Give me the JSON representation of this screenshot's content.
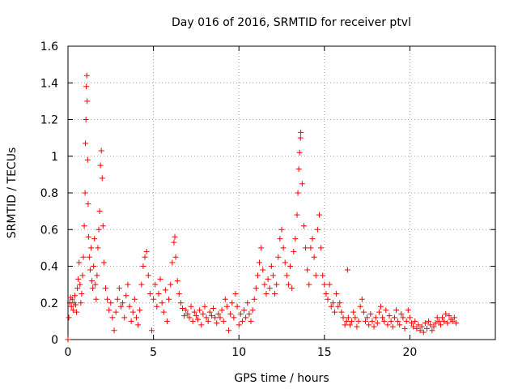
{
  "chart_data": {
    "type": "scatter",
    "title": "Day 016 of 2016, SRMTID for receiver ptvl",
    "xlabel": "GPS time / hours",
    "ylabel": "SRMTID / TECUs",
    "xlim": [
      0,
      25
    ],
    "ylim": [
      0,
      1.6
    ],
    "x_ticks": [
      0,
      5,
      10,
      15,
      20
    ],
    "x_tick_labels": [
      "0",
      "5",
      "10",
      "15",
      "20"
    ],
    "y_ticks": [
      0,
      0.2,
      0.4,
      0.6,
      0.8,
      1,
      1.2,
      1.4,
      1.6
    ],
    "y_tick_labels": [
      "0",
      "0.2",
      "0.4",
      "0.6",
      "0.8",
      "1",
      "1.2",
      "1.4",
      "1.6"
    ],
    "grid": true,
    "marker": "+",
    "color": "#ff0000",
    "series": [
      {
        "name": "SRMTID",
        "points": [
          [
            0.0,
            0.0
          ],
          [
            0.05,
            0.12
          ],
          [
            0.1,
            0.2
          ],
          [
            0.15,
            0.23
          ],
          [
            0.2,
            0.18
          ],
          [
            0.25,
            0.22
          ],
          [
            0.3,
            0.16
          ],
          [
            0.35,
            0.2
          ],
          [
            0.4,
            0.24
          ],
          [
            0.45,
            0.19
          ],
          [
            0.5,
            0.15
          ],
          [
            0.55,
            0.28
          ],
          [
            0.6,
            0.33
          ],
          [
            0.65,
            0.42
          ],
          [
            0.7,
            0.3
          ],
          [
            0.75,
            0.2
          ],
          [
            0.8,
            0.25
          ],
          [
            0.85,
            0.35
          ],
          [
            0.9,
            0.45
          ],
          [
            0.95,
            0.62
          ],
          [
            1.0,
            0.8
          ],
          [
            1.02,
            1.07
          ],
          [
            1.05,
            1.2
          ],
          [
            1.07,
            1.38
          ],
          [
            1.1,
            1.44
          ],
          [
            1.12,
            1.3
          ],
          [
            1.15,
            0.98
          ],
          [
            1.18,
            0.74
          ],
          [
            1.2,
            0.56
          ],
          [
            1.25,
            0.45
          ],
          [
            1.3,
            0.38
          ],
          [
            1.35,
            0.5
          ],
          [
            1.4,
            0.32
          ],
          [
            1.45,
            0.28
          ],
          [
            1.5,
            0.4
          ],
          [
            1.55,
            0.55
          ],
          [
            1.6,
            0.3
          ],
          [
            1.65,
            0.22
          ],
          [
            1.7,
            0.35
          ],
          [
            1.75,
            0.5
          ],
          [
            1.8,
            0.6
          ],
          [
            1.85,
            0.7
          ],
          [
            1.9,
            0.95
          ],
          [
            1.95,
            1.03
          ],
          [
            2.0,
            0.88
          ],
          [
            2.05,
            0.62
          ],
          [
            2.1,
            0.42
          ],
          [
            2.2,
            0.28
          ],
          [
            2.3,
            0.22
          ],
          [
            2.4,
            0.16
          ],
          [
            2.5,
            0.2
          ],
          [
            2.6,
            0.12
          ],
          [
            2.7,
            0.05
          ],
          [
            2.8,
            0.15
          ],
          [
            2.9,
            0.22
          ],
          [
            3.0,
            0.28
          ],
          [
            3.1,
            0.18
          ],
          [
            3.2,
            0.2
          ],
          [
            3.3,
            0.12
          ],
          [
            3.4,
            0.24
          ],
          [
            3.5,
            0.3
          ],
          [
            3.6,
            0.18
          ],
          [
            3.7,
            0.1
          ],
          [
            3.8,
            0.15
          ],
          [
            3.9,
            0.22
          ],
          [
            4.0,
            0.12
          ],
          [
            4.1,
            0.08
          ],
          [
            4.2,
            0.16
          ],
          [
            4.3,
            0.3
          ],
          [
            4.4,
            0.4
          ],
          [
            4.5,
            0.45
          ],
          [
            4.6,
            0.48
          ],
          [
            4.7,
            0.35
          ],
          [
            4.8,
            0.25
          ],
          [
            4.9,
            0.05
          ],
          [
            5.0,
            0.22
          ],
          [
            5.1,
            0.3
          ],
          [
            5.2,
            0.18
          ],
          [
            5.3,
            0.25
          ],
          [
            5.4,
            0.33
          ],
          [
            5.5,
            0.2
          ],
          [
            5.6,
            0.15
          ],
          [
            5.7,
            0.27
          ],
          [
            5.8,
            0.1
          ],
          [
            5.9,
            0.22
          ],
          [
            6.0,
            0.3
          ],
          [
            6.1,
            0.42
          ],
          [
            6.2,
            0.53
          ],
          [
            6.25,
            0.56
          ],
          [
            6.3,
            0.45
          ],
          [
            6.4,
            0.32
          ],
          [
            6.5,
            0.25
          ],
          [
            6.6,
            0.2
          ],
          [
            6.7,
            0.17
          ],
          [
            6.8,
            0.13
          ],
          [
            6.9,
            0.16
          ],
          [
            7.0,
            0.14
          ],
          [
            7.1,
            0.12
          ],
          [
            7.2,
            0.18
          ],
          [
            7.3,
            0.1
          ],
          [
            7.4,
            0.15
          ],
          [
            7.5,
            0.13
          ],
          [
            7.6,
            0.11
          ],
          [
            7.7,
            0.16
          ],
          [
            7.8,
            0.08
          ],
          [
            7.9,
            0.14
          ],
          [
            8.0,
            0.18
          ],
          [
            8.1,
            0.12
          ],
          [
            8.2,
            0.1
          ],
          [
            8.3,
            0.15
          ],
          [
            8.4,
            0.13
          ],
          [
            8.5,
            0.17
          ],
          [
            8.6,
            0.12
          ],
          [
            8.7,
            0.09
          ],
          [
            8.8,
            0.14
          ],
          [
            8.9,
            0.12
          ],
          [
            9.0,
            0.16
          ],
          [
            9.1,
            0.1
          ],
          [
            9.2,
            0.22
          ],
          [
            9.3,
            0.18
          ],
          [
            9.4,
            0.05
          ],
          [
            9.5,
            0.14
          ],
          [
            9.6,
            0.2
          ],
          [
            9.7,
            0.12
          ],
          [
            9.8,
            0.25
          ],
          [
            9.9,
            0.18
          ],
          [
            10.0,
            0.08
          ],
          [
            10.1,
            0.14
          ],
          [
            10.2,
            0.1
          ],
          [
            10.3,
            0.16
          ],
          [
            10.4,
            0.12
          ],
          [
            10.5,
            0.2
          ],
          [
            10.6,
            0.14
          ],
          [
            10.7,
            0.1
          ],
          [
            10.8,
            0.16
          ],
          [
            10.9,
            0.22
          ],
          [
            11.0,
            0.28
          ],
          [
            11.1,
            0.35
          ],
          [
            11.2,
            0.42
          ],
          [
            11.3,
            0.5
          ],
          [
            11.4,
            0.38
          ],
          [
            11.5,
            0.3
          ],
          [
            11.6,
            0.25
          ],
          [
            11.7,
            0.33
          ],
          [
            11.8,
            0.28
          ],
          [
            11.9,
            0.4
          ],
          [
            12.0,
            0.35
          ],
          [
            12.1,
            0.25
          ],
          [
            12.2,
            0.3
          ],
          [
            12.3,
            0.45
          ],
          [
            12.4,
            0.55
          ],
          [
            12.5,
            0.6
          ],
          [
            12.6,
            0.5
          ],
          [
            12.7,
            0.42
          ],
          [
            12.8,
            0.35
          ],
          [
            12.9,
            0.3
          ],
          [
            13.0,
            0.4
          ],
          [
            13.1,
            0.28
          ],
          [
            13.2,
            0.48
          ],
          [
            13.3,
            0.55
          ],
          [
            13.4,
            0.68
          ],
          [
            13.45,
            0.8
          ],
          [
            13.5,
            0.93
          ],
          [
            13.55,
            1.02
          ],
          [
            13.6,
            1.1
          ],
          [
            13.62,
            1.13
          ],
          [
            13.7,
            0.85
          ],
          [
            13.8,
            0.62
          ],
          [
            13.9,
            0.5
          ],
          [
            14.0,
            0.38
          ],
          [
            14.1,
            0.3
          ],
          [
            14.2,
            0.5
          ],
          [
            14.3,
            0.55
          ],
          [
            14.4,
            0.45
          ],
          [
            14.5,
            0.35
          ],
          [
            14.6,
            0.6
          ],
          [
            14.7,
            0.68
          ],
          [
            14.8,
            0.5
          ],
          [
            14.9,
            0.35
          ],
          [
            15.0,
            0.3
          ],
          [
            15.1,
            0.25
          ],
          [
            15.2,
            0.22
          ],
          [
            15.3,
            0.3
          ],
          [
            15.4,
            0.18
          ],
          [
            15.5,
            0.2
          ],
          [
            15.6,
            0.15
          ],
          [
            15.7,
            0.25
          ],
          [
            15.8,
            0.18
          ],
          [
            15.9,
            0.2
          ],
          [
            16.0,
            0.15
          ],
          [
            16.1,
            0.12
          ],
          [
            16.2,
            0.08
          ],
          [
            16.3,
            0.1
          ],
          [
            16.35,
            0.38
          ],
          [
            16.4,
            0.12
          ],
          [
            16.5,
            0.08
          ],
          [
            16.6,
            0.1
          ],
          [
            16.7,
            0.15
          ],
          [
            16.8,
            0.12
          ],
          [
            16.9,
            0.07
          ],
          [
            17.0,
            0.1
          ],
          [
            17.1,
            0.18
          ],
          [
            17.2,
            0.22
          ],
          [
            17.3,
            0.15
          ],
          [
            17.4,
            0.1
          ],
          [
            17.5,
            0.12
          ],
          [
            17.6,
            0.08
          ],
          [
            17.7,
            0.14
          ],
          [
            17.8,
            0.1
          ],
          [
            17.9,
            0.07
          ],
          [
            18.0,
            0.12
          ],
          [
            18.1,
            0.09
          ],
          [
            18.2,
            0.15
          ],
          [
            18.3,
            0.18
          ],
          [
            18.4,
            0.12
          ],
          [
            18.5,
            0.1
          ],
          [
            18.6,
            0.16
          ],
          [
            18.7,
            0.08
          ],
          [
            18.8,
            0.13
          ],
          [
            18.9,
            0.1
          ],
          [
            19.0,
            0.07
          ],
          [
            19.1,
            0.12
          ],
          [
            19.2,
            0.16
          ],
          [
            19.3,
            0.1
          ],
          [
            19.4,
            0.08
          ],
          [
            19.5,
            0.14
          ],
          [
            19.6,
            0.12
          ],
          [
            19.7,
            0.06
          ],
          [
            19.8,
            0.1
          ],
          [
            19.9,
            0.16
          ],
          [
            20.0,
            0.12
          ],
          [
            20.1,
            0.09
          ],
          [
            20.2,
            0.07
          ],
          [
            20.3,
            0.1
          ],
          [
            20.4,
            0.06
          ],
          [
            20.5,
            0.08
          ],
          [
            20.6,
            0.05
          ],
          [
            20.7,
            0.07
          ],
          [
            20.8,
            0.04
          ],
          [
            20.9,
            0.09
          ],
          [
            21.0,
            0.06
          ],
          [
            21.1,
            0.1
          ],
          [
            21.2,
            0.08
          ],
          [
            21.3,
            0.05
          ],
          [
            21.4,
            0.07
          ],
          [
            21.5,
            0.09
          ],
          [
            21.6,
            0.12
          ],
          [
            21.7,
            0.1
          ],
          [
            21.8,
            0.08
          ],
          [
            21.9,
            0.12
          ],
          [
            22.0,
            0.1
          ],
          [
            22.1,
            0.14
          ],
          [
            22.2,
            0.09
          ],
          [
            22.3,
            0.13
          ],
          [
            22.4,
            0.11
          ],
          [
            22.5,
            0.1
          ],
          [
            22.6,
            0.12
          ],
          [
            22.7,
            0.09
          ]
        ]
      }
    ]
  }
}
